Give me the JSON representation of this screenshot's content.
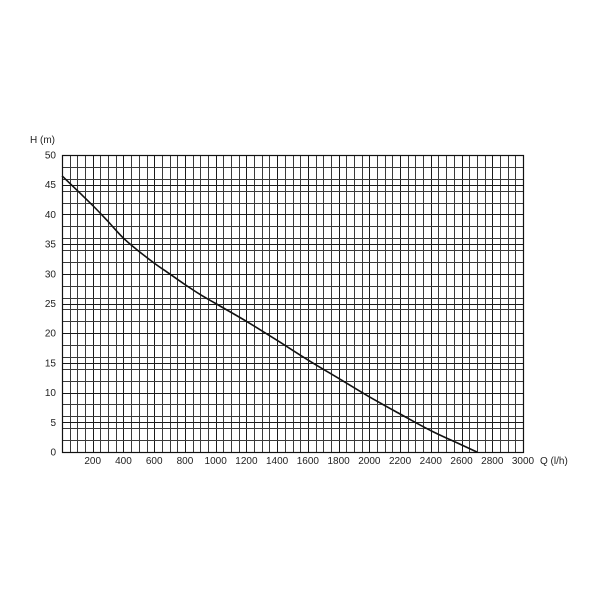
{
  "chart_data": {
    "type": "line",
    "title": "",
    "xlabel": "Q (l/h)",
    "ylabel": "H (m)",
    "xlim": [
      0,
      3000
    ],
    "ylim": [
      0,
      50
    ],
    "x_ticks": [
      200,
      400,
      600,
      800,
      1000,
      1200,
      1400,
      1600,
      1800,
      2000,
      2200,
      2400,
      2600,
      2800,
      3000
    ],
    "y_ticks": [
      0,
      5,
      10,
      15,
      20,
      25,
      30,
      35,
      40,
      45,
      50
    ],
    "x_tick_labels": [
      "200",
      "400",
      "600",
      "800",
      "1000",
      "1200",
      "1400",
      "1600",
      "1800",
      "2000",
      "2200",
      "2400",
      "2600",
      "2800",
      "3000"
    ],
    "y_tick_labels": [
      "0",
      "5",
      "10",
      "15",
      "20",
      "25",
      "30",
      "35",
      "40",
      "45",
      "50"
    ],
    "grid": true,
    "grid_minor_x": 50,
    "grid_minor_y": 2,
    "grid_major_x": 200,
    "grid_major_y": 5,
    "series": [
      {
        "x": [
          0,
          100,
          200,
          300,
          400,
          500,
          600,
          700,
          800,
          900,
          1000,
          1200,
          1400,
          1600,
          1800,
          2000,
          2200,
          2400,
          2600,
          2700
        ],
        "y": [
          46.5,
          44.0,
          41.5,
          38.8,
          36.0,
          33.8,
          31.8,
          30.0,
          28.2,
          26.5,
          25.0,
          22.0,
          18.8,
          15.5,
          12.4,
          9.3,
          6.4,
          3.6,
          1.2,
          0.0
        ],
        "color": "#111111"
      }
    ]
  }
}
